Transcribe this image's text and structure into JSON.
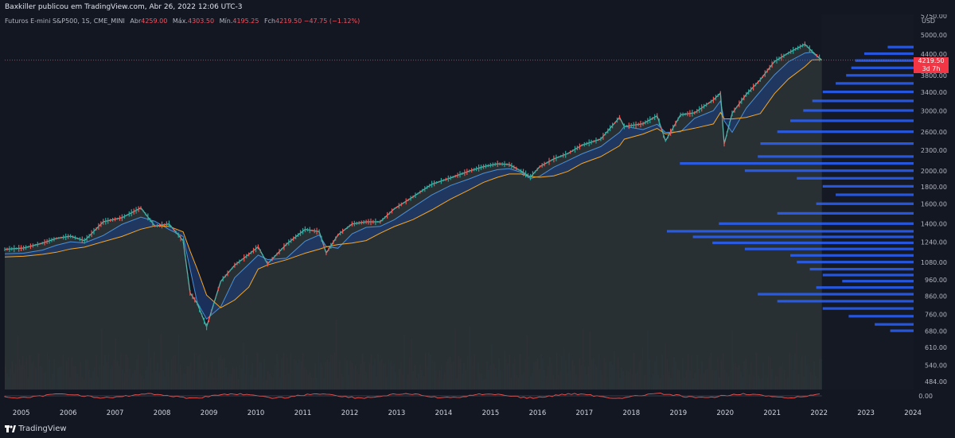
{
  "header": {
    "publisher": "Baxkiller publicou em TradingView.com, Abr 26, 2022 12:06 UTC-3"
  },
  "legend": {
    "symbol": "Futuros E-mini S&P500, 1S, CME_MINI",
    "open_label": "Abr",
    "open": "4259.00",
    "high_label": "Máx.",
    "high": "4303.50",
    "low_label": "Mín.",
    "low": "4195.25",
    "close_label": "Fch",
    "close": "4219.50",
    "change": "−47.75 (−1.12%)"
  },
  "price_tag": {
    "price": "4219.50",
    "countdown": "3d 7h"
  },
  "footer": {
    "brand": "TradingView",
    "logo_icon": "tradingview-logo-icon"
  },
  "colors": {
    "background": "#151924",
    "up": "#26a69a",
    "down": "#ef5350",
    "ema_fast": "#4a90d9",
    "ema_slow": "#f5a623",
    "profile": "#2962ff",
    "last_price": "#f23645"
  },
  "chart_data": {
    "type": "line",
    "title": "Futuros E-mini S&P500, 1S, CME_MINI",
    "y_axis": {
      "scale": "log",
      "unit": "USD",
      "ticks": [
        5750,
        5000,
        4400,
        3800,
        3400,
        3000,
        2600,
        2300,
        2000,
        1800,
        1600,
        1400,
        1240,
        1080,
        960,
        860,
        760,
        680,
        610,
        540,
        484
      ],
      "range": [
        484,
        5750
      ]
    },
    "x_axis": {
      "ticks": [
        "2005",
        "2006",
        "2007",
        "2008",
        "2009",
        "2010",
        "2011",
        "2012",
        "2013",
        "2014",
        "2015",
        "2016",
        "2017",
        "2018",
        "2019",
        "2020",
        "2021",
        "2022",
        "2023",
        "2024"
      ],
      "range": [
        2004.9,
        2024.3
      ]
    },
    "series": [
      {
        "x": [
          2004.9,
          2005.3,
          2005.7,
          2006.0,
          2006.3,
          2006.6,
          2007.0,
          2007.4,
          2007.8,
          2008.1,
          2008.4,
          2008.7,
          2008.85,
          2009.0,
          2009.2,
          2009.5,
          2009.8,
          2010.1,
          2010.3,
          2010.5,
          2010.9,
          2011.3,
          2011.6,
          2011.75,
          2012.0,
          2012.3,
          2012.6,
          2012.9,
          2013.2,
          2013.6,
          2014.0,
          2014.4,
          2014.8,
          2015.1,
          2015.4,
          2015.65,
          2015.9,
          2016.1,
          2016.3,
          2016.6,
          2016.9,
          2017.2,
          2017.6,
          2018.0,
          2018.1,
          2018.5,
          2018.8,
          2018.98,
          2019.3,
          2019.6,
          2020.0,
          2020.15,
          2020.23,
          2020.4,
          2020.7,
          2021.0,
          2021.3,
          2021.6,
          2021.95,
          2022.1,
          2022.31
        ],
        "y": [
          1180,
          1190,
          1230,
          1270,
          1290,
          1250,
          1420,
          1460,
          1560,
          1380,
          1400,
          1250,
          880,
          820,
          700,
          950,
          1060,
          1140,
          1200,
          1070,
          1220,
          1350,
          1330,
          1150,
          1300,
          1400,
          1420,
          1420,
          1550,
          1680,
          1830,
          1910,
          2000,
          2060,
          2100,
          2090,
          2000,
          1920,
          2060,
          2170,
          2250,
          2380,
          2480,
          2870,
          2700,
          2750,
          2900,
          2450,
          2920,
          2960,
          3230,
          3380,
          2400,
          2950,
          3350,
          3700,
          4180,
          4430,
          4700,
          4480,
          4219.5
        ]
      }
    ],
    "volume_profile": {
      "price": [
        4600,
        4400,
        4200,
        4000,
        3800,
        3600,
        3400,
        3200,
        3000,
        2800,
        2600,
        2400,
        2200,
        2100,
        2000,
        1900,
        1800,
        1700,
        1600,
        1500,
        1400,
        1330,
        1280,
        1230,
        1180,
        1130,
        1080,
        1030,
        990,
        950,
        910,
        870,
        830,
        790,
        750,
        710,
        680
      ],
      "volume": [
        20,
        38,
        45,
        48,
        52,
        60,
        70,
        78,
        85,
        95,
        105,
        118,
        120,
        180,
        130,
        90,
        70,
        60,
        75,
        105,
        150,
        190,
        170,
        155,
        130,
        95,
        90,
        80,
        70,
        55,
        75,
        120,
        105,
        70,
        50,
        30,
        18
      ]
    },
    "last_price": 4219.5
  }
}
